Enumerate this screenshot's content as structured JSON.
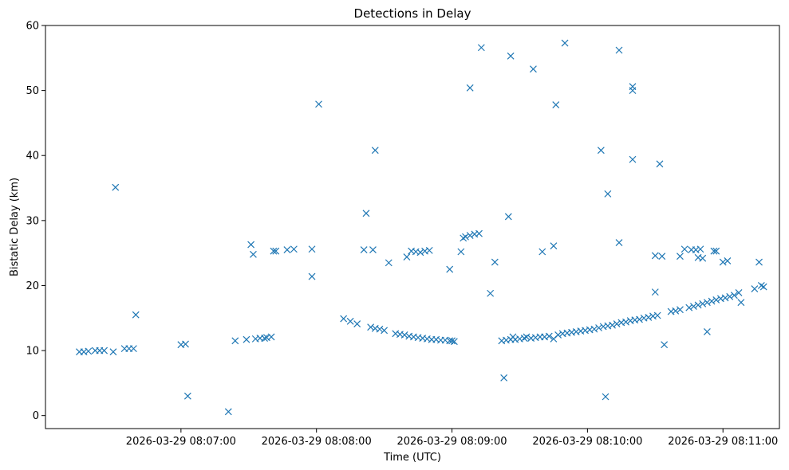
{
  "chart_data": {
    "type": "scatter",
    "title": "Detections in Delay",
    "xlabel": "Time (UTC)",
    "ylabel": "Bistatic Delay (km)",
    "marker": "x",
    "color": "#1f77b4",
    "xlim": [
      "2026-03-29 08:06:00",
      "2026-03-29 08:11:25"
    ],
    "ylim": [
      -2,
      60
    ],
    "x_ticks": [
      "2026-03-29 08:07:00",
      "2026-03-29 08:08:00",
      "2026-03-29 08:09:00",
      "2026-03-29 08:10:00",
      "2026-03-29 08:11:00"
    ],
    "y_ticks": [
      0,
      10,
      20,
      30,
      40,
      50,
      60
    ],
    "grid": false,
    "legend": "none",
    "points": [
      [
        "2026-03-29 08:06:15",
        9.8
      ],
      [
        "2026-03-29 08:06:17",
        9.8
      ],
      [
        "2026-03-29 08:06:19",
        9.9
      ],
      [
        "2026-03-29 08:06:22",
        10.0
      ],
      [
        "2026-03-29 08:06:24",
        10.0
      ],
      [
        "2026-03-29 08:06:26",
        10.0
      ],
      [
        "2026-03-29 08:06:30",
        9.8
      ],
      [
        "2026-03-29 08:06:31",
        35.1
      ],
      [
        "2026-03-29 08:06:35",
        10.3
      ],
      [
        "2026-03-29 08:06:37",
        10.3
      ],
      [
        "2026-03-29 08:06:39",
        10.3
      ],
      [
        "2026-03-29 08:06:40",
        15.5
      ],
      [
        "2026-03-29 08:07:00",
        10.9
      ],
      [
        "2026-03-29 08:07:02",
        11.0
      ],
      [
        "2026-03-29 08:07:03",
        3.0
      ],
      [
        "2026-03-29 08:07:21",
        0.6
      ],
      [
        "2026-03-29 08:07:24",
        11.5
      ],
      [
        "2026-03-29 08:07:29",
        11.7
      ],
      [
        "2026-03-29 08:07:31",
        26.3
      ],
      [
        "2026-03-29 08:07:32",
        24.8
      ],
      [
        "2026-03-29 08:07:33",
        11.8
      ],
      [
        "2026-03-29 08:07:35",
        11.9
      ],
      [
        "2026-03-29 08:07:37",
        11.9
      ],
      [
        "2026-03-29 08:07:38",
        12.0
      ],
      [
        "2026-03-29 08:07:40",
        12.1
      ],
      [
        "2026-03-29 08:07:41",
        25.3
      ],
      [
        "2026-03-29 08:07:42",
        25.3
      ],
      [
        "2026-03-29 08:07:47",
        25.5
      ],
      [
        "2026-03-29 08:07:50",
        25.6
      ],
      [
        "2026-03-29 08:07:58",
        25.6
      ],
      [
        "2026-03-29 08:07:58",
        21.4
      ],
      [
        "2026-03-29 08:08:01",
        47.9
      ],
      [
        "2026-03-29 08:08:12",
        14.9
      ],
      [
        "2026-03-29 08:08:15",
        14.5
      ],
      [
        "2026-03-29 08:08:18",
        14.1
      ],
      [
        "2026-03-29 08:08:21",
        25.5
      ],
      [
        "2026-03-29 08:08:22",
        31.1
      ],
      [
        "2026-03-29 08:08:24",
        13.6
      ],
      [
        "2026-03-29 08:08:25",
        25.5
      ],
      [
        "2026-03-29 08:08:26",
        40.8
      ],
      [
        "2026-03-29 08:08:26",
        13.4
      ],
      [
        "2026-03-29 08:08:28",
        13.3
      ],
      [
        "2026-03-29 08:08:30",
        13.1
      ],
      [
        "2026-03-29 08:08:32",
        23.5
      ],
      [
        "2026-03-29 08:08:35",
        12.6
      ],
      [
        "2026-03-29 08:08:37",
        12.5
      ],
      [
        "2026-03-29 08:08:39",
        12.4
      ],
      [
        "2026-03-29 08:08:40",
        24.4
      ],
      [
        "2026-03-29 08:08:41",
        12.2
      ],
      [
        "2026-03-29 08:08:42",
        25.3
      ],
      [
        "2026-03-29 08:08:43",
        12.1
      ],
      [
        "2026-03-29 08:08:44",
        25.2
      ],
      [
        "2026-03-29 08:08:45",
        12.0
      ],
      [
        "2026-03-29 08:08:46",
        25.1
      ],
      [
        "2026-03-29 08:08:47",
        11.9
      ],
      [
        "2026-03-29 08:08:48",
        25.3
      ],
      [
        "2026-03-29 08:08:49",
        11.8
      ],
      [
        "2026-03-29 08:08:50",
        25.4
      ],
      [
        "2026-03-29 08:08:51",
        11.7
      ],
      [
        "2026-03-29 08:08:53",
        11.7
      ],
      [
        "2026-03-29 08:08:55",
        11.6
      ],
      [
        "2026-03-29 08:08:57",
        11.6
      ],
      [
        "2026-03-29 08:08:59",
        11.5
      ],
      [
        "2026-03-29 08:09:00",
        11.5
      ],
      [
        "2026-03-29 08:08:59",
        22.5
      ],
      [
        "2026-03-29 08:09:01",
        11.4
      ],
      [
        "2026-03-29 08:09:04",
        25.2
      ],
      [
        "2026-03-29 08:09:05",
        27.3
      ],
      [
        "2026-03-29 08:09:06",
        27.5
      ],
      [
        "2026-03-29 08:09:08",
        27.7
      ],
      [
        "2026-03-29 08:09:10",
        27.9
      ],
      [
        "2026-03-29 08:09:12",
        28.0
      ],
      [
        "2026-03-29 08:09:08",
        50.4
      ],
      [
        "2026-03-29 08:09:13",
        56.6
      ],
      [
        "2026-03-29 08:09:17",
        18.8
      ],
      [
        "2026-03-29 08:09:19",
        23.6
      ],
      [
        "2026-03-29 08:09:22",
        11.5
      ],
      [
        "2026-03-29 08:09:23",
        5.8
      ],
      [
        "2026-03-29 08:09:24",
        11.6
      ],
      [
        "2026-03-29 08:09:25",
        30.6
      ],
      [
        "2026-03-29 08:09:26",
        11.7
      ],
      [
        "2026-03-29 08:09:26",
        55.3
      ],
      [
        "2026-03-29 08:09:27",
        12.1
      ],
      [
        "2026-03-29 08:09:28",
        11.7
      ],
      [
        "2026-03-29 08:09:30",
        11.8
      ],
      [
        "2026-03-29 08:09:32",
        11.9
      ],
      [
        "2026-03-29 08:09:33",
        12.1
      ],
      [
        "2026-03-29 08:09:35",
        11.9
      ],
      [
        "2026-03-29 08:09:36",
        53.3
      ],
      [
        "2026-03-29 08:09:37",
        12.0
      ],
      [
        "2026-03-29 08:09:39",
        12.1
      ],
      [
        "2026-03-29 08:09:40",
        25.2
      ],
      [
        "2026-03-29 08:09:41",
        12.1
      ],
      [
        "2026-03-29 08:09:43",
        12.2
      ],
      [
        "2026-03-29 08:09:45",
        26.1
      ],
      [
        "2026-03-29 08:09:46",
        47.8
      ],
      [
        "2026-03-29 08:09:45",
        11.8
      ],
      [
        "2026-03-29 08:09:47",
        12.4
      ],
      [
        "2026-03-29 08:09:49",
        12.6
      ],
      [
        "2026-03-29 08:09:50",
        57.3
      ],
      [
        "2026-03-29 08:09:51",
        12.7
      ],
      [
        "2026-03-29 08:09:53",
        12.8
      ],
      [
        "2026-03-29 08:09:55",
        12.9
      ],
      [
        "2026-03-29 08:09:57",
        13.0
      ],
      [
        "2026-03-29 08:09:59",
        13.1
      ],
      [
        "2026-03-29 08:10:01",
        13.2
      ],
      [
        "2026-03-29 08:10:03",
        13.3
      ],
      [
        "2026-03-29 08:10:05",
        13.5
      ],
      [
        "2026-03-29 08:10:06",
        40.8
      ],
      [
        "2026-03-29 08:10:07",
        13.7
      ],
      [
        "2026-03-29 08:10:08",
        2.9
      ],
      [
        "2026-03-29 08:10:09",
        13.8
      ],
      [
        "2026-03-29 08:10:09",
        34.1
      ],
      [
        "2026-03-29 08:10:11",
        13.9
      ],
      [
        "2026-03-29 08:10:13",
        14.1
      ],
      [
        "2026-03-29 08:10:14",
        56.2
      ],
      [
        "2026-03-29 08:10:14",
        26.6
      ],
      [
        "2026-03-29 08:10:15",
        14.3
      ],
      [
        "2026-03-29 08:10:17",
        14.4
      ],
      [
        "2026-03-29 08:10:19",
        14.6
      ],
      [
        "2026-03-29 08:10:20",
        50.6
      ],
      [
        "2026-03-29 08:10:20",
        50.0
      ],
      [
        "2026-03-29 08:10:20",
        39.4
      ],
      [
        "2026-03-29 08:10:21",
        14.7
      ],
      [
        "2026-03-29 08:10:23",
        14.8
      ],
      [
        "2026-03-29 08:10:25",
        15.0
      ],
      [
        "2026-03-29 08:10:27",
        15.1
      ],
      [
        "2026-03-29 08:10:29",
        15.3
      ],
      [
        "2026-03-29 08:10:30",
        19.0
      ],
      [
        "2026-03-29 08:10:30",
        24.6
      ],
      [
        "2026-03-29 08:10:31",
        15.4
      ],
      [
        "2026-03-29 08:10:32",
        38.7
      ],
      [
        "2026-03-29 08:10:33",
        24.5
      ],
      [
        "2026-03-29 08:10:34",
        10.9
      ],
      [
        "2026-03-29 08:10:37",
        16.0
      ],
      [
        "2026-03-29 08:10:39",
        16.1
      ],
      [
        "2026-03-29 08:10:41",
        16.3
      ],
      [
        "2026-03-29 08:10:41",
        24.5
      ],
      [
        "2026-03-29 08:10:43",
        25.6
      ],
      [
        "2026-03-29 08:10:45",
        16.6
      ],
      [
        "2026-03-29 08:10:46",
        25.5
      ],
      [
        "2026-03-29 08:10:47",
        16.8
      ],
      [
        "2026-03-29 08:10:48",
        25.5
      ],
      [
        "2026-03-29 08:10:49",
        24.3
      ],
      [
        "2026-03-29 08:10:49",
        17.0
      ],
      [
        "2026-03-29 08:10:50",
        25.6
      ],
      [
        "2026-03-29 08:10:51",
        24.2
      ],
      [
        "2026-03-29 08:10:51",
        17.2
      ],
      [
        "2026-03-29 08:10:53",
        17.4
      ],
      [
        "2026-03-29 08:10:53",
        12.9
      ],
      [
        "2026-03-29 08:10:55",
        17.6
      ],
      [
        "2026-03-29 08:10:56",
        25.3
      ],
      [
        "2026-03-29 08:10:57",
        25.3
      ],
      [
        "2026-03-29 08:10:57",
        17.8
      ],
      [
        "2026-03-29 08:10:59",
        18.0
      ],
      [
        "2026-03-29 08:11:00",
        23.6
      ],
      [
        "2026-03-29 08:11:01",
        18.1
      ],
      [
        "2026-03-29 08:11:02",
        23.8
      ],
      [
        "2026-03-29 08:11:03",
        18.3
      ],
      [
        "2026-03-29 08:11:05",
        18.5
      ],
      [
        "2026-03-29 08:11:07",
        18.9
      ],
      [
        "2026-03-29 08:11:08",
        17.4
      ],
      [
        "2026-03-29 08:11:14",
        19.5
      ],
      [
        "2026-03-29 08:11:16",
        23.6
      ],
      [
        "2026-03-29 08:11:17",
        20.0
      ],
      [
        "2026-03-29 08:11:18",
        19.8
      ]
    ]
  }
}
